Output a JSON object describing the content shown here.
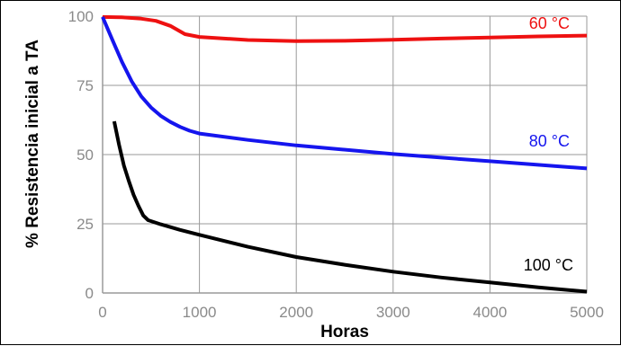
{
  "chart_data": {
    "type": "line",
    "title": "",
    "xlabel": "Horas",
    "ylabel": "% Resistencia inicial a TA",
    "xlim": [
      0,
      5000
    ],
    "ylim": [
      0,
      100
    ],
    "xticks": [
      "0",
      "1000",
      "2000",
      "3000",
      "4000",
      "5000"
    ],
    "yticks": [
      "0",
      "25",
      "50",
      "75",
      "100"
    ],
    "grid": true,
    "series": [
      {
        "name": "60 °C",
        "color": "#ee1111",
        "points": [
          [
            0,
            99.7
          ],
          [
            200,
            99.6
          ],
          [
            400,
            99.1
          ],
          [
            550,
            98.3
          ],
          [
            700,
            96.5
          ],
          [
            850,
            93.5
          ],
          [
            1000,
            92.5
          ],
          [
            1500,
            91.4
          ],
          [
            2000,
            91.0
          ],
          [
            2500,
            91.1
          ],
          [
            3000,
            91.5
          ],
          [
            3500,
            91.9
          ],
          [
            4000,
            92.3
          ],
          [
            4500,
            92.7
          ],
          [
            5000,
            93.0
          ]
        ]
      },
      {
        "name": "80 °C",
        "color": "#1515ee",
        "points": [
          [
            0,
            99.7
          ],
          [
            100,
            91.5
          ],
          [
            200,
            83.5
          ],
          [
            300,
            76.5
          ],
          [
            400,
            71.0
          ],
          [
            500,
            67.0
          ],
          [
            600,
            64.0
          ],
          [
            700,
            61.8
          ],
          [
            800,
            60.0
          ],
          [
            900,
            58.6
          ],
          [
            1000,
            57.6
          ],
          [
            1500,
            55.3
          ],
          [
            2000,
            53.3
          ],
          [
            3000,
            50.2
          ],
          [
            4000,
            47.6
          ],
          [
            5000,
            45.0
          ]
        ]
      },
      {
        "name": "100 °C",
        "color": "#000000",
        "points": [
          [
            120,
            62.0
          ],
          [
            170,
            53.5
          ],
          [
            220,
            46.0
          ],
          [
            270,
            40.5
          ],
          [
            320,
            35.5
          ],
          [
            370,
            31.5
          ],
          [
            420,
            28.0
          ],
          [
            470,
            26.3
          ],
          [
            600,
            24.8
          ],
          [
            800,
            22.8
          ],
          [
            1000,
            21.0
          ],
          [
            1500,
            16.7
          ],
          [
            2000,
            13.0
          ],
          [
            2500,
            10.2
          ],
          [
            3000,
            7.7
          ],
          [
            3500,
            5.6
          ],
          [
            4000,
            3.8
          ],
          [
            4500,
            2.0
          ],
          [
            5000,
            0.5
          ]
        ]
      }
    ]
  }
}
